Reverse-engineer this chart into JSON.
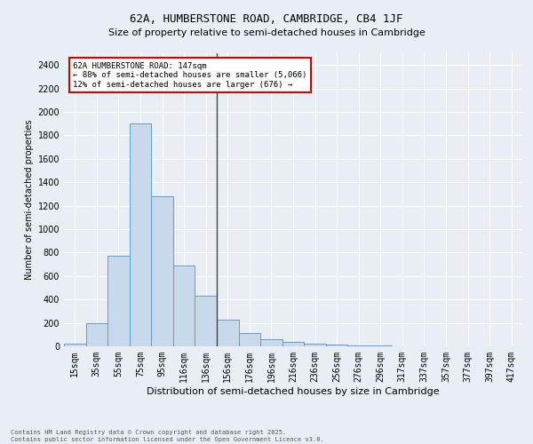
{
  "title": "62A, HUMBERSTONE ROAD, CAMBRIDGE, CB4 1JF",
  "subtitle": "Size of property relative to semi-detached houses in Cambridge",
  "xlabel": "Distribution of semi-detached houses by size in Cambridge",
  "ylabel": "Number of semi-detached properties",
  "footer_line1": "Contains HM Land Registry data © Crown copyright and database right 2025.",
  "footer_line2": "Contains public sector information licensed under the Open Government Licence v3.0.",
  "categories": [
    "15sqm",
    "35sqm",
    "55sqm",
    "75sqm",
    "95sqm",
    "116sqm",
    "136sqm",
    "156sqm",
    "176sqm",
    "196sqm",
    "216sqm",
    "236sqm",
    "256sqm",
    "276sqm",
    "296sqm",
    "317sqm",
    "337sqm",
    "357sqm",
    "377sqm",
    "397sqm",
    "417sqm"
  ],
  "values": [
    20,
    200,
    770,
    1900,
    1280,
    690,
    435,
    230,
    110,
    60,
    35,
    20,
    15,
    8,
    5,
    2,
    0,
    0,
    0,
    0,
    0
  ],
  "bar_color": "#c9d9ec",
  "bar_edge_color": "#6699cc",
  "annotation_line1": "62A HUMBERSTONE ROAD: 147sqm",
  "annotation_line2": "← 88% of semi-detached houses are smaller (5,066)",
  "annotation_line3": "12% of semi-detached houses are larger (676) →",
  "vline_x_index": 6.5,
  "ylim": [
    0,
    2500
  ],
  "yticks": [
    0,
    200,
    400,
    600,
    800,
    1000,
    1200,
    1400,
    1600,
    1800,
    2000,
    2200,
    2400
  ],
  "background_color": "#e8eef4",
  "plot_bg_color": "#e8eef4",
  "grid_color": "#ffffff",
  "title_fontsize": 9,
  "subtitle_fontsize": 8,
  "xlabel_fontsize": 8,
  "ylabel_fontsize": 7,
  "annotation_box_color": "#ffffff",
  "annotation_border_color": "#cc0000",
  "vline_color": "#444444",
  "tick_fontsize": 7,
  "ytick_fontsize": 7,
  "footer_fontsize": 5
}
